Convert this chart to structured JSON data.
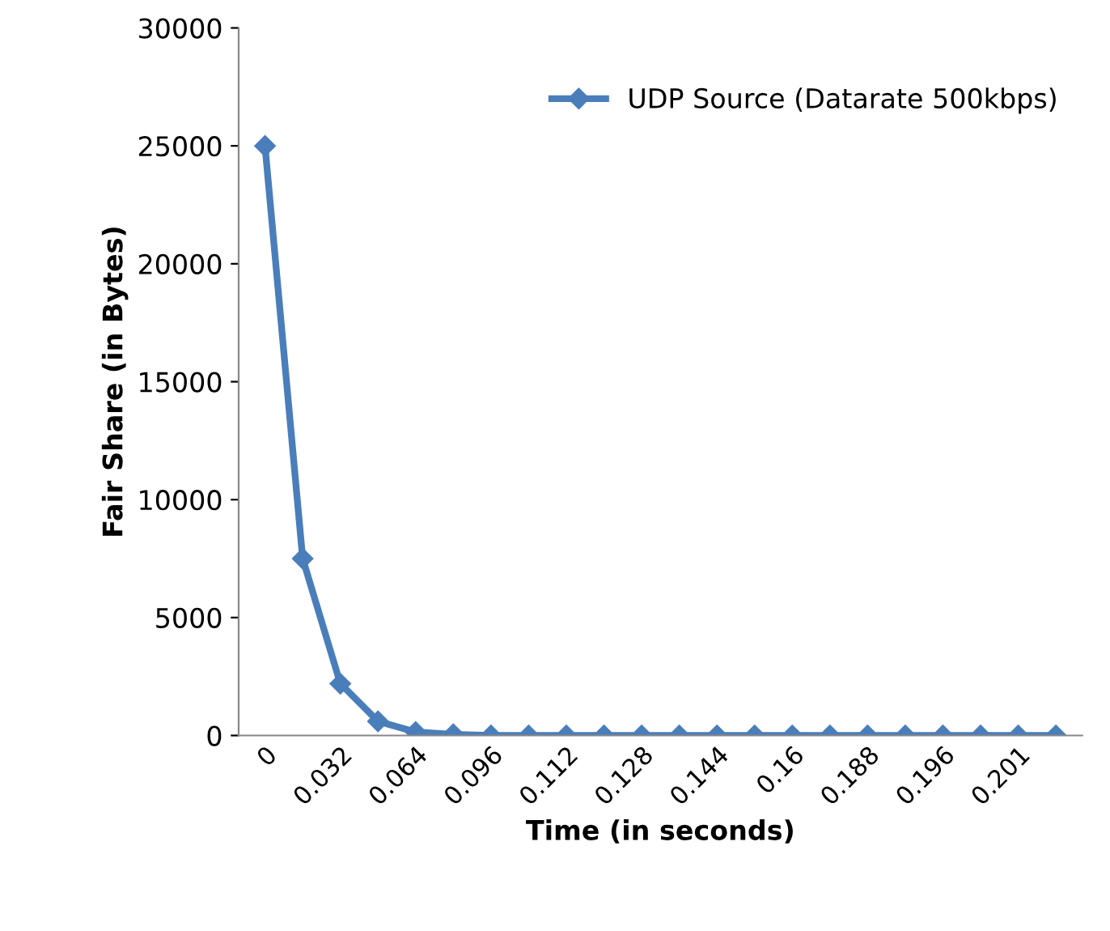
{
  "chart_data": {
    "type": "line",
    "xlabel": "Time (in seconds)",
    "ylabel": "Fair Share (in Bytes)",
    "categories": [
      "0",
      null,
      "0.032",
      null,
      "0.064",
      null,
      "0.096",
      null,
      "0.112",
      null,
      "0.128",
      null,
      "0.144",
      null,
      "0.16",
      null,
      "0.188",
      null,
      "0.196",
      null,
      "0.201",
      null
    ],
    "series": [
      {
        "name": "UDP Source (Datarate 500kbps)",
        "color": "#4a7ebb",
        "values": [
          25000,
          7500,
          2200,
          600,
          150,
          50,
          0,
          0,
          0,
          0,
          0,
          0,
          0,
          0,
          0,
          0,
          0,
          0,
          0,
          0,
          0,
          0
        ]
      }
    ],
    "ylim": [
      0,
      30000
    ],
    "yticks": [
      0,
      5000,
      10000,
      15000,
      20000,
      25000,
      30000
    ],
    "grid": false,
    "legend": "top right",
    "marker": "diamond",
    "line_style": "solid"
  }
}
